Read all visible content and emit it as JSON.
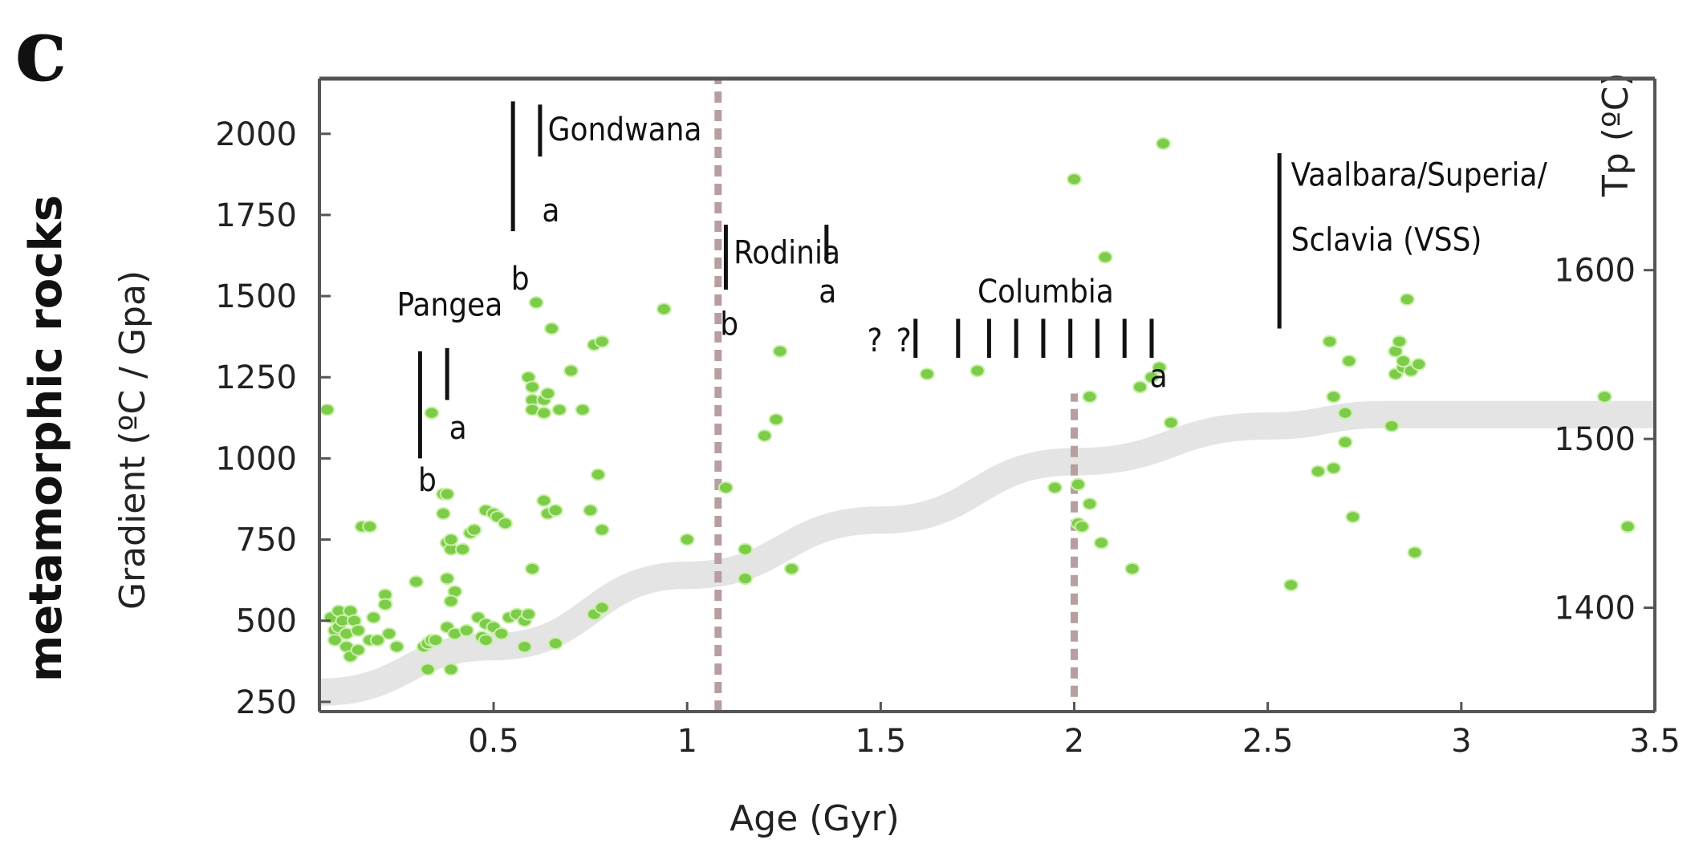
{
  "panel_label": "c",
  "side_label": "metamorphic rocks",
  "chart_data": {
    "type": "scatter",
    "xlabel": "Age (Gyr)",
    "ylabel": "Gradient  (ºC / Gpa)",
    "y2label": "Tp (ºC)",
    "xlim": [
      0.05,
      3.5
    ],
    "ylim": [
      220,
      2170
    ],
    "xticks": [
      {
        "v": 0.5,
        "label": "0.5"
      },
      {
        "v": 1,
        "label": "1"
      },
      {
        "v": 1.5,
        "label": "1.5"
      },
      {
        "v": 2,
        "label": "2"
      },
      {
        "v": 2.5,
        "label": "2.5"
      },
      {
        "v": 3,
        "label": "3"
      },
      {
        "v": 3.5,
        "label": "3.5"
      }
    ],
    "yticks": [
      {
        "v": 250,
        "label": "250"
      },
      {
        "v": 500,
        "label": "500"
      },
      {
        "v": 750,
        "label": "750"
      },
      {
        "v": 1000,
        "label": "1000"
      },
      {
        "v": 1250,
        "label": "1250"
      },
      {
        "v": 1500,
        "label": "1500"
      },
      {
        "v": 1750,
        "label": "1750"
      },
      {
        "v": 2000,
        "label": "2000"
      }
    ],
    "y2ticks": [
      {
        "v": 1600,
        "label": "1600",
        "y": 1580
      },
      {
        "v": 1500,
        "label": "1500",
        "y": 1060
      },
      {
        "v": 1400,
        "label": "1400",
        "y": 540
      }
    ],
    "colors": {
      "points": "#7ccc4a",
      "point_center": "#c9f0a8",
      "band": "#e4e4e4",
      "dashed": "#b79ea0",
      "frame": "#555555"
    },
    "points": [
      [
        0.07,
        1150
      ],
      [
        0.08,
        510
      ],
      [
        0.09,
        470
      ],
      [
        0.09,
        440
      ],
      [
        0.1,
        480
      ],
      [
        0.1,
        530
      ],
      [
        0.11,
        500
      ],
      [
        0.12,
        460
      ],
      [
        0.12,
        420
      ],
      [
        0.13,
        390
      ],
      [
        0.13,
        530
      ],
      [
        0.14,
        500
      ],
      [
        0.15,
        410
      ],
      [
        0.15,
        470
      ],
      [
        0.16,
        790
      ],
      [
        0.18,
        790
      ],
      [
        0.18,
        440
      ],
      [
        0.19,
        510
      ],
      [
        0.2,
        440
      ],
      [
        0.22,
        580
      ],
      [
        0.22,
        550
      ],
      [
        0.23,
        460
      ],
      [
        0.25,
        420
      ],
      [
        0.3,
        620
      ],
      [
        0.32,
        420
      ],
      [
        0.33,
        430
      ],
      [
        0.33,
        350
      ],
      [
        0.34,
        440
      ],
      [
        0.35,
        440
      ],
      [
        0.34,
        1140
      ],
      [
        0.37,
        890
      ],
      [
        0.38,
        890
      ],
      [
        0.37,
        830
      ],
      [
        0.38,
        740
      ],
      [
        0.39,
        720
      ],
      [
        0.39,
        750
      ],
      [
        0.38,
        630
      ],
      [
        0.4,
        590
      ],
      [
        0.39,
        560
      ],
      [
        0.38,
        480
      ],
      [
        0.4,
        460
      ],
      [
        0.39,
        350
      ],
      [
        0.42,
        720
      ],
      [
        0.43,
        470
      ],
      [
        0.44,
        770
      ],
      [
        0.45,
        780
      ],
      [
        0.46,
        510
      ],
      [
        0.48,
        490
      ],
      [
        0.48,
        840
      ],
      [
        0.5,
        830
      ],
      [
        0.51,
        820
      ],
      [
        0.53,
        800
      ],
      [
        0.47,
        450
      ],
      [
        0.48,
        440
      ],
      [
        0.5,
        480
      ],
      [
        0.52,
        460
      ],
      [
        0.54,
        510
      ],
      [
        0.56,
        520
      ],
      [
        0.58,
        500
      ],
      [
        0.58,
        420
      ],
      [
        0.59,
        520
      ],
      [
        0.6,
        660
      ],
      [
        0.59,
        1250
      ],
      [
        0.6,
        1220
      ],
      [
        0.6,
        1180
      ],
      [
        0.6,
        1150
      ],
      [
        0.61,
        1480
      ],
      [
        0.63,
        1140
      ],
      [
        0.63,
        1180
      ],
      [
        0.63,
        870
      ],
      [
        0.64,
        830
      ],
      [
        0.65,
        1400
      ],
      [
        0.64,
        1200
      ],
      [
        0.66,
        430
      ],
      [
        0.67,
        1150
      ],
      [
        0.7,
        1270
      ],
      [
        0.73,
        1150
      ],
      [
        0.76,
        1350
      ],
      [
        0.77,
        950
      ],
      [
        0.78,
        780
      ],
      [
        0.76,
        520
      ],
      [
        0.78,
        540
      ],
      [
        0.66,
        840
      ],
      [
        0.75,
        840
      ],
      [
        0.78,
        1360
      ],
      [
        0.94,
        1460
      ],
      [
        1.0,
        750
      ],
      [
        1.1,
        910
      ],
      [
        1.15,
        630
      ],
      [
        1.15,
        720
      ],
      [
        1.2,
        1070
      ],
      [
        1.23,
        1120
      ],
      [
        1.24,
        1330
      ],
      [
        1.27,
        660
      ],
      [
        1.62,
        1260
      ],
      [
        1.75,
        1270
      ],
      [
        1.95,
        910
      ],
      [
        2.0,
        1860
      ],
      [
        2.01,
        920
      ],
      [
        2.01,
        800
      ],
      [
        2.02,
        790
      ],
      [
        2.04,
        860
      ],
      [
        2.04,
        1190
      ],
      [
        2.07,
        740
      ],
      [
        2.08,
        1620
      ],
      [
        2.15,
        660
      ],
      [
        2.17,
        1220
      ],
      [
        2.2,
        1250
      ],
      [
        2.22,
        1280
      ],
      [
        2.23,
        1970
      ],
      [
        2.25,
        1110
      ],
      [
        2.56,
        610
      ],
      [
        2.63,
        960
      ],
      [
        2.66,
        1360
      ],
      [
        2.67,
        1190
      ],
      [
        2.67,
        970
      ],
      [
        2.7,
        1050
      ],
      [
        2.7,
        1140
      ],
      [
        2.71,
        1300
      ],
      [
        2.72,
        820
      ],
      [
        2.82,
        1100
      ],
      [
        2.83,
        1330
      ],
      [
        2.83,
        1260
      ],
      [
        2.84,
        1360
      ],
      [
        2.85,
        1280
      ],
      [
        2.85,
        1300
      ],
      [
        2.86,
        1490
      ],
      [
        2.87,
        1270
      ],
      [
        2.88,
        710
      ],
      [
        2.89,
        1290
      ],
      [
        3.37,
        1190
      ],
      [
        3.43,
        790
      ]
    ],
    "trend_band": [
      [
        0.05,
        280
      ],
      [
        0.5,
        420
      ],
      [
        1.0,
        640
      ],
      [
        1.5,
        810
      ],
      [
        2.0,
        990
      ],
      [
        2.5,
        1100
      ],
      [
        2.8,
        1135
      ],
      [
        3.5,
        1135
      ]
    ],
    "dashed_lines": [
      {
        "x": 1.08,
        "y_from": 220,
        "y_to": 2170
      },
      {
        "x": 2.0,
        "y_from": 265,
        "y_to": 1200
      }
    ],
    "bars": [
      {
        "x": 0.31,
        "y_from": 1000,
        "y_to": 1330
      },
      {
        "x": 0.38,
        "y_from": 1180,
        "y_to": 1340
      },
      {
        "x": 0.55,
        "y_from": 1700,
        "y_to": 2100
      },
      {
        "x": 0.62,
        "y_from": 1930,
        "y_to": 2090
      },
      {
        "x": 1.1,
        "y_from": 1520,
        "y_to": 1720
      },
      {
        "x": 1.36,
        "y_from": 1610,
        "y_to": 1720
      },
      {
        "x": 2.53,
        "y_from": 1400,
        "y_to": 1940
      },
      {
        "x": 1.59,
        "y_from": 1310,
        "y_to": 1430
      },
      {
        "x": 1.7,
        "y_from": 1310,
        "y_to": 1430
      },
      {
        "x": 1.78,
        "y_from": 1310,
        "y_to": 1430
      },
      {
        "x": 1.85,
        "y_from": 1310,
        "y_to": 1430
      },
      {
        "x": 1.92,
        "y_from": 1310,
        "y_to": 1430
      },
      {
        "x": 1.99,
        "y_from": 1310,
        "y_to": 1430
      },
      {
        "x": 2.06,
        "y_from": 1310,
        "y_to": 1430
      },
      {
        "x": 2.13,
        "y_from": 1310,
        "y_to": 1430
      },
      {
        "x": 2.2,
        "y_from": 1310,
        "y_to": 1430
      }
    ],
    "annotations": [
      {
        "text": "Pangea",
        "x": 0.25,
        "y": 1440
      },
      {
        "text": "a",
        "x": 0.385,
        "y": 1060
      },
      {
        "text": "b",
        "x": 0.305,
        "y": 900
      },
      {
        "text": "Gondwana",
        "x": 0.64,
        "y": 1980
      },
      {
        "text": "a",
        "x": 0.625,
        "y": 1730
      },
      {
        "text": "b",
        "x": 0.545,
        "y": 1520
      },
      {
        "text": "Rodinia",
        "x": 1.12,
        "y": 1600
      },
      {
        "text": "a",
        "x": 1.34,
        "y": 1480
      },
      {
        "text": "b",
        "x": 1.085,
        "y": 1380
      },
      {
        "text": "Columbia",
        "x": 1.75,
        "y": 1480
      },
      {
        "text": "?",
        "x": 1.465,
        "y": 1330
      },
      {
        "text": "?",
        "x": 1.54,
        "y": 1330
      },
      {
        "text": "a",
        "x": 2.195,
        "y": 1220
      },
      {
        "text": "Vaalbara/Superia/",
        "x": 2.56,
        "y": 1840
      },
      {
        "text": "Sclavia (VSS)",
        "x": 2.56,
        "y": 1640
      }
    ]
  }
}
